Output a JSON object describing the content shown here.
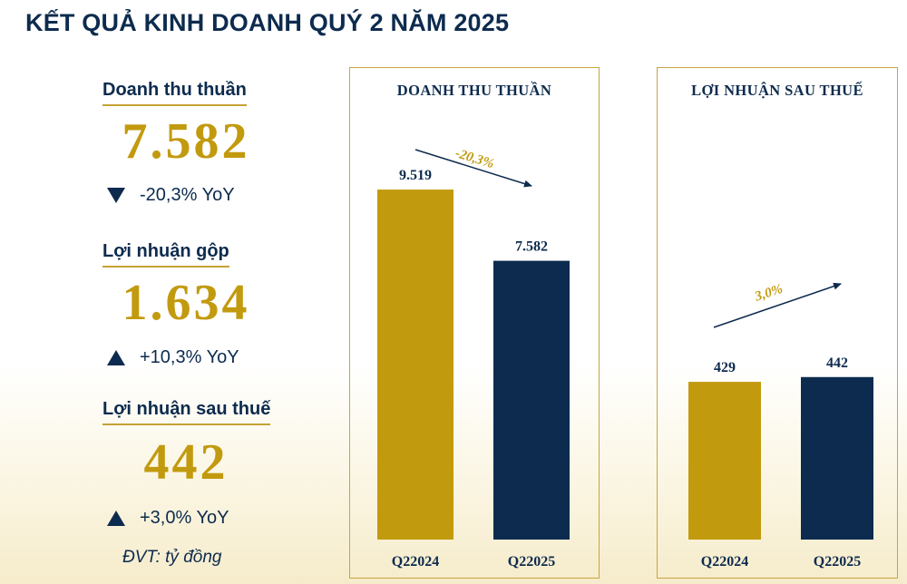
{
  "title": "KẾT QUẢ KINH DOANH QUÝ 2 NĂM 2025",
  "metrics": [
    {
      "label": "Doanh thu thuần",
      "value": "7.582",
      "direction": "down",
      "change": "-20,3% YoY"
    },
    {
      "label": "Lợi nhuận gộp",
      "value": "1.634",
      "direction": "up",
      "change": "+10,3% YoY"
    },
    {
      "label": "Lợi nhuận sau thuế",
      "value": "442",
      "direction": "up",
      "change": "+3,0% YoY"
    }
  ],
  "unit": "ĐVT: tỷ đồng",
  "colors": {
    "gold": "#c29a0e",
    "navy": "#0d2b4e",
    "frame": "#c8a540"
  },
  "chart_data": [
    {
      "type": "bar",
      "title": "DOANH THU THUẦN",
      "categories": [
        "Q22024",
        "Q22025"
      ],
      "values": [
        9519,
        7582
      ],
      "value_labels": [
        "9.519",
        "7.582"
      ],
      "change_label": "-20,3%",
      "trend": "down",
      "bar_colors": [
        "#c29a0e",
        "#0d2b4e"
      ],
      "ylim": [
        0,
        11000
      ]
    },
    {
      "type": "bar",
      "title": "LỢI NHUẬN SAU THUẾ",
      "categories": [
        "Q22024",
        "Q22025"
      ],
      "values": [
        429,
        442
      ],
      "value_labels": [
        "429",
        "442"
      ],
      "change_label": "3,0%",
      "trend": "up",
      "bar_colors": [
        "#c29a0e",
        "#0d2b4e"
      ],
      "ylim": [
        0,
        1100
      ]
    }
  ]
}
